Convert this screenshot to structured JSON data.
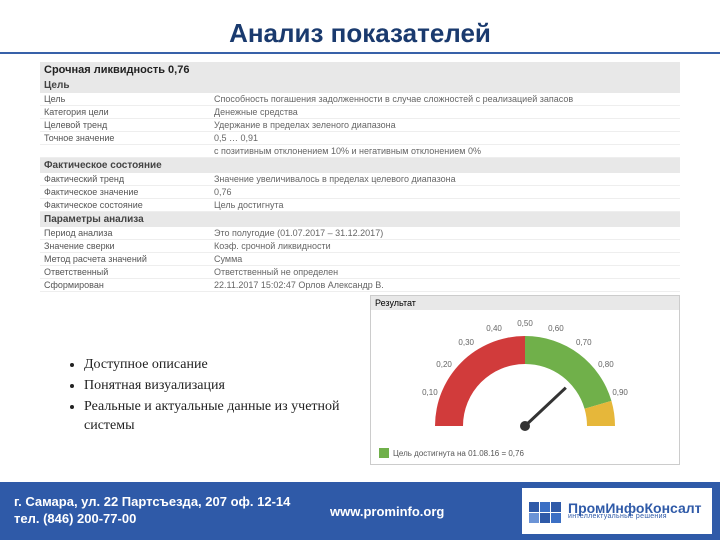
{
  "title": "Анализ показателей",
  "report": {
    "main_title": "Срочная ликвидность 0,76",
    "sections": [
      {
        "header": "Цель",
        "rows": [
          {
            "k": "Цель",
            "v": "Способность погашения задолженности в случае сложностей с реализацией запасов"
          },
          {
            "k": "Категория цели",
            "v": "Денежные средства"
          },
          {
            "k": "Целевой тренд",
            "v": "Удержание в пределах зеленого диапазона"
          },
          {
            "k": "Точное значение",
            "v": "0,5 … 0,91"
          },
          {
            "k": "",
            "v": "с позитивным отклонением 10% и негативным отклонением 0%"
          }
        ]
      },
      {
        "header": "Фактическое состояние",
        "rows": [
          {
            "k": "Фактический тренд",
            "v": "Значение увеличивалось в пределах целевого диапазона"
          },
          {
            "k": "Фактическое значение",
            "v": "0,76"
          },
          {
            "k": "Фактическое состояние",
            "v": "Цель достигнута"
          }
        ]
      },
      {
        "header": "Параметры анализа",
        "rows": [
          {
            "k": "Период анализа",
            "v": "Это полугодие (01.07.2017 – 31.12.2017)"
          },
          {
            "k": "Значение сверки",
            "v": "Коэф. срочной ликвидности"
          },
          {
            "k": "Метод расчета значений",
            "v": "Сумма"
          }
        ]
      }
    ],
    "footer_rows": [
      {
        "k": "Ответственный",
        "v": "Ответственный не определен"
      },
      {
        "k": "Сформирован",
        "v": "22.11.2017 15:02:47 Орлов Александр В."
      }
    ]
  },
  "gauge": {
    "title": "Результат",
    "legend": "Цель достигнута на 01.08.16 = 0,76",
    "min": 0,
    "max": 1.0,
    "green_start": 0.5,
    "green_end": 0.91,
    "yellow_start": 0.91,
    "yellow_end": 1.0,
    "red_start": 0,
    "red_end": 0.5,
    "value": 0.76,
    "tick_labels": [
      "0,10",
      "0,20",
      "0,30",
      "0,40",
      "0,50",
      "0,60",
      "0,70",
      "0,80",
      "0,90"
    ],
    "colors": {
      "red": "#d13b3b",
      "yellow": "#e6b73a",
      "green": "#70b04a",
      "needle": "#333",
      "bg": "#ffffff",
      "tick": "#666"
    }
  },
  "bullets": [
    "Доступное описание",
    "Понятная визуализация",
    "Реальные и актуальные данные из учетной системы"
  ],
  "footer": {
    "address_line1": "г. Самара, ул. 22 Партсъезда, 207 оф. 12-14",
    "address_line2": "тел. (846) 200-77-00",
    "url": "www.prominfo.org",
    "brand": "ПромИнфоКонсалт",
    "brand_sub": "интеллектуальные решения"
  },
  "style": {
    "title_color": "#1a3a6e",
    "rule_color": "#3861a9",
    "footer_bg": "#2f5aa8",
    "section_bg": "#e8e8e8",
    "font_title": 26,
    "font_body": 9
  }
}
